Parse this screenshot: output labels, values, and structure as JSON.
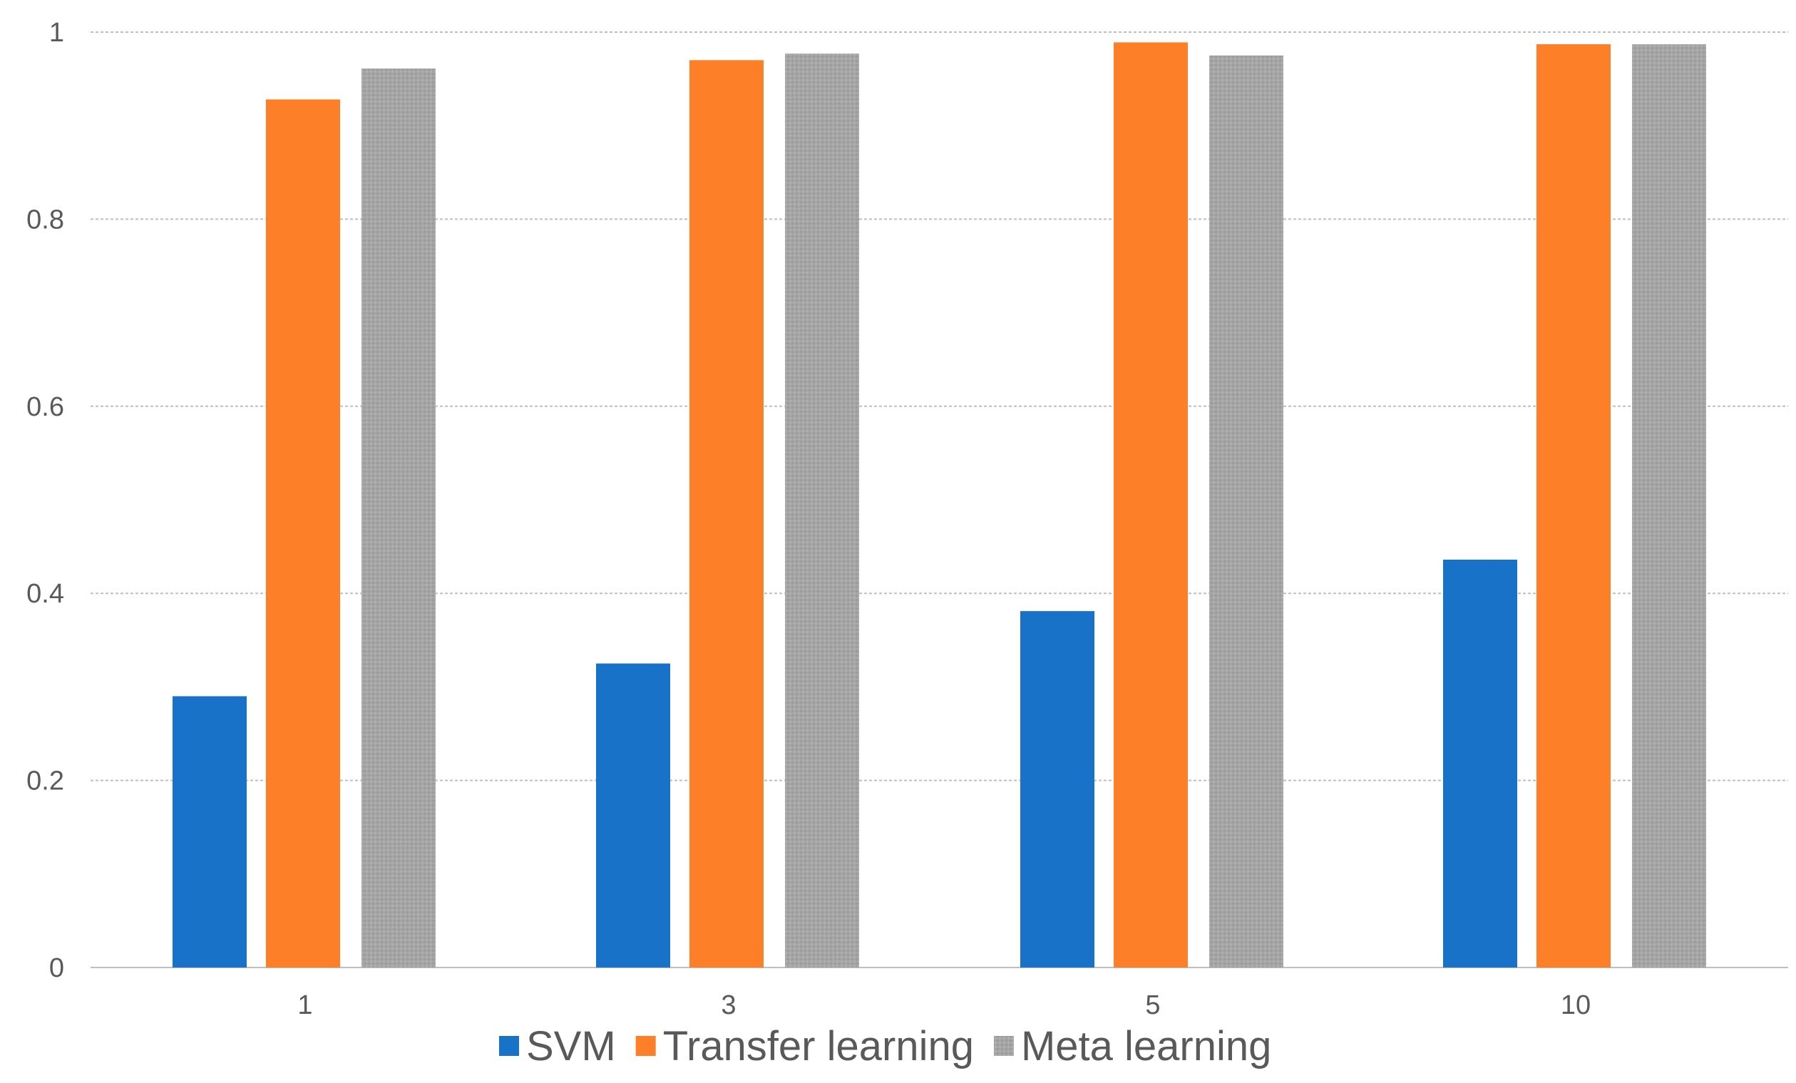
{
  "chart_data": {
    "type": "bar",
    "title": "",
    "xlabel": "",
    "ylabel": "",
    "categories": [
      "1",
      "3",
      "5",
      "10"
    ],
    "series": [
      {
        "name": "SVM",
        "color": "#1872c8",
        "values": [
          0.29,
          0.325,
          0.381,
          0.436
        ]
      },
      {
        "name": "Transfer learning",
        "color": "#fd7f28",
        "values": [
          0.928,
          0.97,
          0.989,
          0.987
        ]
      },
      {
        "name": "Meta learning",
        "color": "#a5a5a5",
        "pattern": "dotted-texture",
        "values": [
          0.961,
          0.977,
          0.975,
          0.987
        ]
      }
    ],
    "ylim": [
      0,
      1
    ],
    "yticks": [
      "0",
      "0.2",
      "0.4",
      "0.6",
      "0.8",
      "1"
    ],
    "grid": true,
    "legend_position": "bottom"
  }
}
